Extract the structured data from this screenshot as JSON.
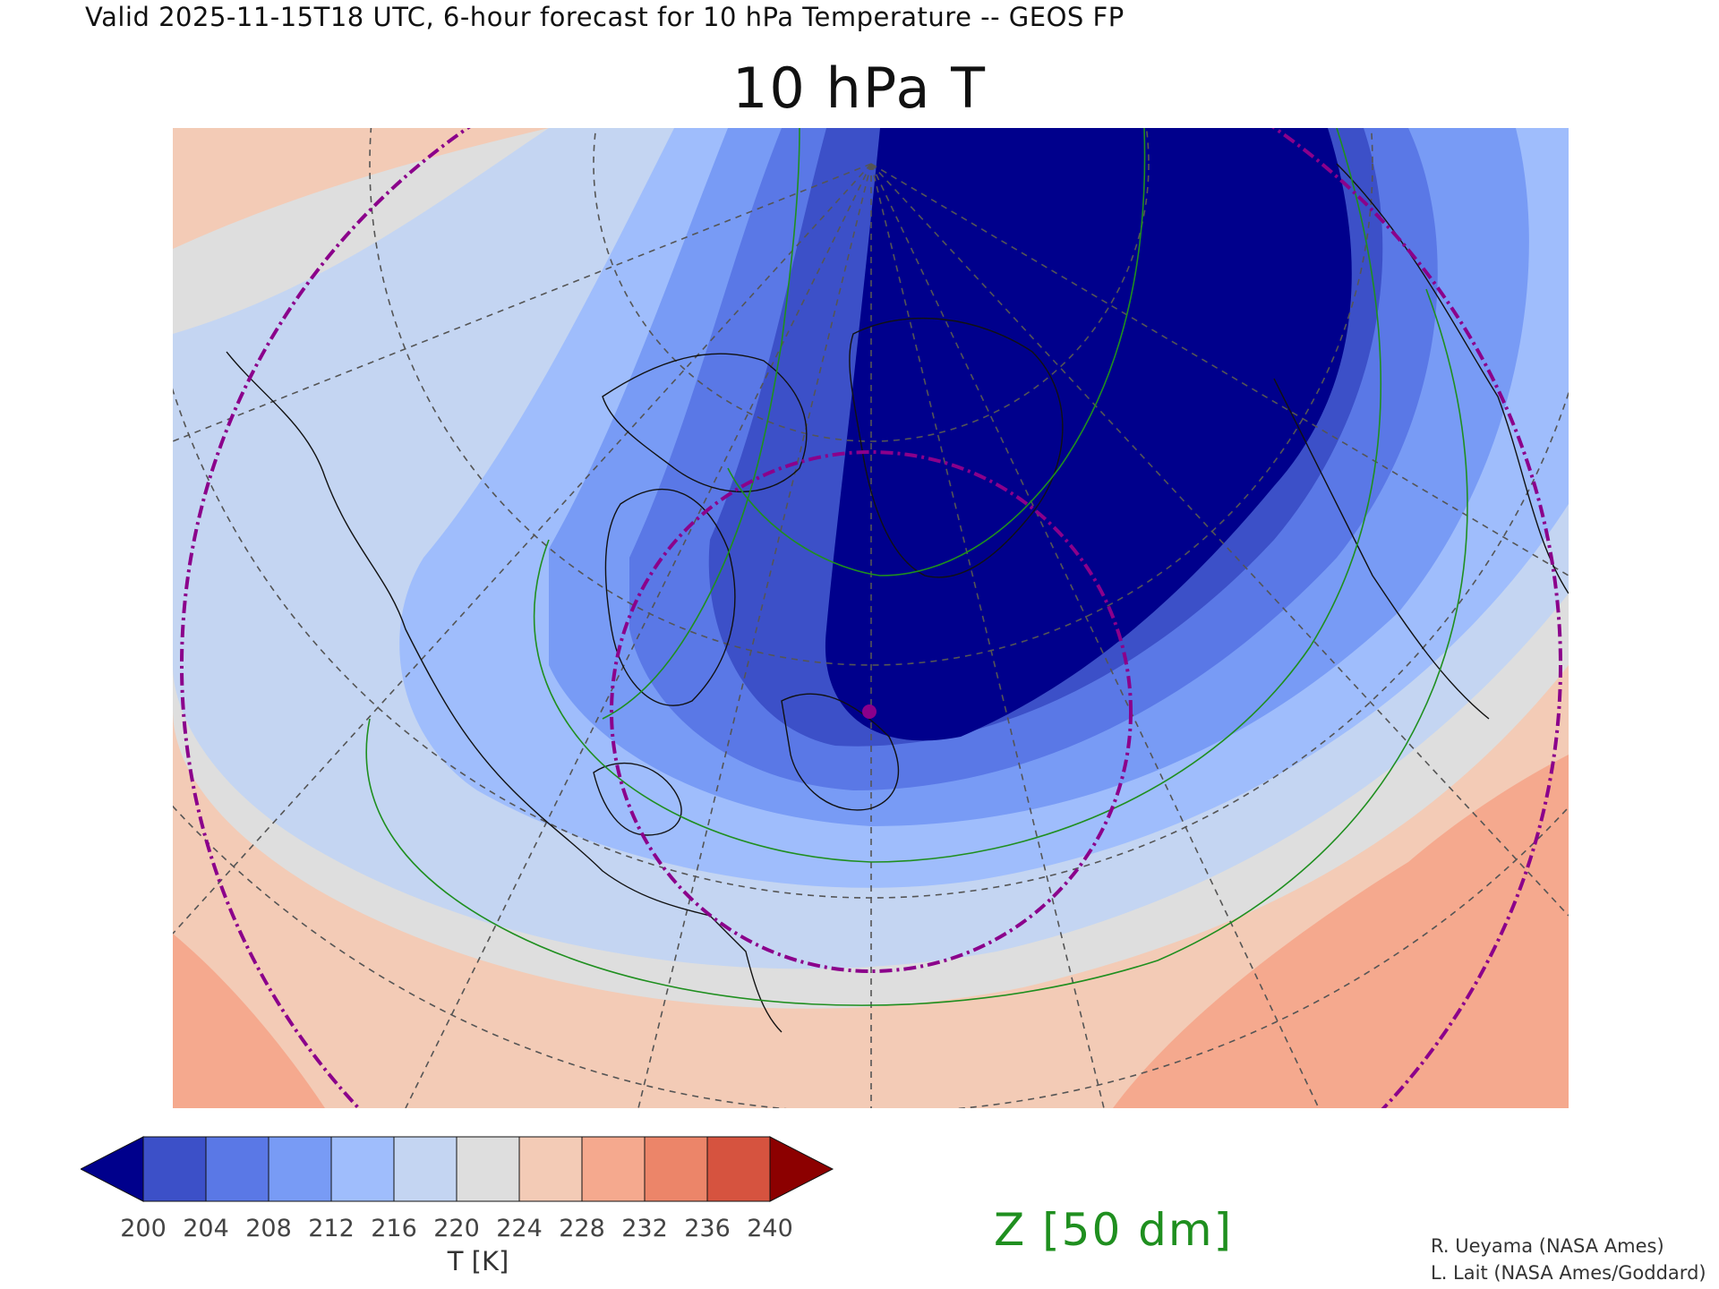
{
  "header": "Valid 2025-11-15T18 UTC, 6-hour forecast for 10 hPa Temperature -- GEOS FP",
  "title": "10 hPa T",
  "colorbar": {
    "ticks": [
      "200",
      "204",
      "208",
      "212",
      "216",
      "220",
      "224",
      "228",
      "232",
      "236",
      "240"
    ],
    "colors": [
      "#00008c",
      "#3c50c8",
      "#5a78e6",
      "#789bf5",
      "#9fbdfc",
      "#c4d5f2",
      "#dedede",
      "#f3cbb6",
      "#f5a98e",
      "#ec8569",
      "#d6533f",
      "#8c0000"
    ],
    "label": "T [K]"
  },
  "contour_label": "Z [50 dm]",
  "credits": [
    "R. Ueyama (NASA Ames)",
    "L. Lait (NASA Ames/Goddard)"
  ],
  "map_colors": {
    "coast": "#111111",
    "graticule": "#555555",
    "height_contour": "#1f8f1f",
    "polar_vortex_edge": "#8b008b"
  }
}
